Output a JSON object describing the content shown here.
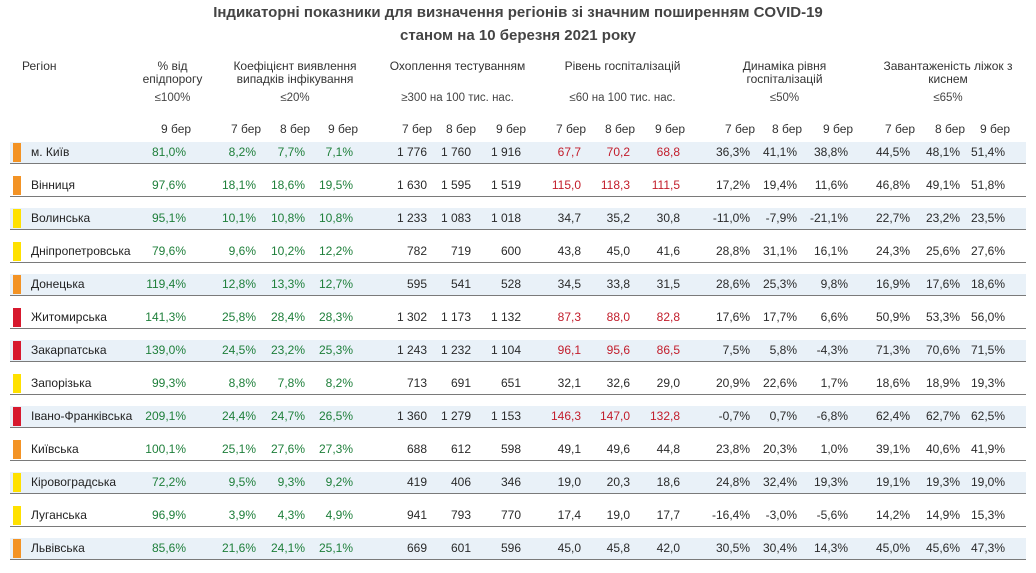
{
  "title_line1": "Індикаторні показники для визначення регіонів зі значним поширенням COVID-19",
  "title_line2": "станом на 10 березня 2021 року",
  "headers": {
    "region": "Регіон",
    "pct_epi": "% від епідпорогу",
    "pct_epi_threshold": "≤100%",
    "coef": "Коефіцієнт виявлення випадків інфікування",
    "coef_threshold": "≤20%",
    "tests": "Охоплення тестуванням",
    "tests_threshold": "≥300 на 100 тис. нас.",
    "hosp": "Рівень госпіталізацій",
    "hosp_threshold": "≤60 на 100 тис. нас.",
    "dyn": "Динаміка рівня госпіталізацій",
    "dyn_threshold": "≤50%",
    "oxy": "Завантаженість ліжок з киснем",
    "oxy_threshold": "≤65%"
  },
  "days": {
    "d7": "7 бер",
    "d8": "8 бер",
    "d9": "9 бер"
  },
  "colors": {
    "green": "#1e7f3a",
    "red": "#c21d2b",
    "orange": "#f39325",
    "yellow": "#ffe100",
    "darkred": "#d7192e",
    "band": "#e9f1f8"
  },
  "rows": [
    {
      "region": "м. Київ",
      "marker": "orange",
      "band": true,
      "epi": "81,0%",
      "coef": [
        "8,2%",
        "7,7%",
        "7,1%"
      ],
      "tests": [
        "1 776",
        "1 760",
        "1 916"
      ],
      "hosp": [
        "67,7",
        "70,2",
        "68,8"
      ],
      "hosp_red": true,
      "dyn": [
        "36,3%",
        "41,1%",
        "38,8%"
      ],
      "oxy": [
        "44,5%",
        "48,1%",
        "51,4%"
      ]
    },
    {
      "region": "Вінниця",
      "marker": "orange",
      "band": false,
      "epi": "97,6%",
      "coef": [
        "18,1%",
        "18,6%",
        "19,5%"
      ],
      "tests": [
        "1 630",
        "1 595",
        "1 519"
      ],
      "hosp": [
        "115,0",
        "118,3",
        "111,5"
      ],
      "hosp_red": true,
      "dyn": [
        "17,2%",
        "19,4%",
        "11,6%"
      ],
      "oxy": [
        "46,8%",
        "49,1%",
        "51,8%"
      ]
    },
    {
      "region": "Волинська",
      "marker": "yellow",
      "band": true,
      "epi": "95,1%",
      "coef": [
        "10,1%",
        "10,8%",
        "10,8%"
      ],
      "tests": [
        "1 233",
        "1 083",
        "1 018"
      ],
      "hosp": [
        "34,7",
        "35,2",
        "30,8"
      ],
      "hosp_red": false,
      "dyn": [
        "-11,0%",
        "-7,9%",
        "-21,1%"
      ],
      "oxy": [
        "22,7%",
        "23,2%",
        "23,5%"
      ]
    },
    {
      "region": "Дніпропетровська",
      "marker": "yellow",
      "band": false,
      "epi": "79,6%",
      "coef": [
        "9,6%",
        "10,2%",
        "12,2%"
      ],
      "tests": [
        "782",
        "719",
        "600"
      ],
      "hosp": [
        "43,8",
        "45,0",
        "41,6"
      ],
      "hosp_red": false,
      "dyn": [
        "28,8%",
        "31,1%",
        "16,1%"
      ],
      "oxy": [
        "24,3%",
        "25,6%",
        "27,6%"
      ]
    },
    {
      "region": "Донецька",
      "marker": "orange",
      "band": true,
      "epi": "119,4%",
      "coef": [
        "12,8%",
        "13,3%",
        "12,7%"
      ],
      "tests": [
        "595",
        "541",
        "528"
      ],
      "hosp": [
        "34,5",
        "33,8",
        "31,5"
      ],
      "hosp_red": false,
      "dyn": [
        "28,6%",
        "25,3%",
        "9,8%"
      ],
      "oxy": [
        "16,9%",
        "17,6%",
        "18,6%"
      ]
    },
    {
      "region": "Житомирська",
      "marker": "darkred",
      "band": false,
      "epi": "141,3%",
      "coef": [
        "25,8%",
        "28,4%",
        "28,3%"
      ],
      "tests": [
        "1 302",
        "1 173",
        "1 132"
      ],
      "hosp": [
        "87,3",
        "88,0",
        "82,8"
      ],
      "hosp_red": true,
      "dyn": [
        "17,6%",
        "17,7%",
        "6,6%"
      ],
      "oxy": [
        "50,9%",
        "53,3%",
        "56,0%"
      ]
    },
    {
      "region": "Закарпатська",
      "marker": "darkred",
      "band": true,
      "epi": "139,0%",
      "coef": [
        "24,5%",
        "23,2%",
        "25,3%"
      ],
      "tests": [
        "1 243",
        "1 232",
        "1 104"
      ],
      "hosp": [
        "96,1",
        "95,6",
        "86,5"
      ],
      "hosp_red": true,
      "dyn": [
        "7,5%",
        "5,8%",
        "-4,3%"
      ],
      "oxy": [
        "71,3%",
        "70,6%",
        "71,5%"
      ]
    },
    {
      "region": "Запорізька",
      "marker": "yellow",
      "band": false,
      "epi": "99,3%",
      "coef": [
        "8,8%",
        "7,8%",
        "8,2%"
      ],
      "tests": [
        "713",
        "691",
        "651"
      ],
      "hosp": [
        "32,1",
        "32,6",
        "29,0"
      ],
      "hosp_red": false,
      "dyn": [
        "20,9%",
        "22,6%",
        "1,7%"
      ],
      "oxy": [
        "18,6%",
        "18,9%",
        "19,3%"
      ]
    },
    {
      "region": "Івано-Франківська",
      "marker": "darkred",
      "band": true,
      "epi": "209,1%",
      "coef": [
        "24,4%",
        "24,7%",
        "26,5%"
      ],
      "tests": [
        "1 360",
        "1 279",
        "1 153"
      ],
      "hosp": [
        "146,3",
        "147,0",
        "132,8"
      ],
      "hosp_red": true,
      "dyn": [
        "-0,7%",
        "0,7%",
        "-6,8%"
      ],
      "oxy": [
        "62,4%",
        "62,7%",
        "62,5%"
      ]
    },
    {
      "region": "Київська",
      "marker": "orange",
      "band": false,
      "epi": "100,1%",
      "coef": [
        "25,1%",
        "27,6%",
        "27,3%"
      ],
      "tests": [
        "688",
        "612",
        "598"
      ],
      "hosp": [
        "49,1",
        "49,6",
        "44,8"
      ],
      "hosp_red": false,
      "dyn": [
        "23,8%",
        "20,3%",
        "1,0%"
      ],
      "oxy": [
        "39,1%",
        "40,6%",
        "41,9%"
      ]
    },
    {
      "region": "Кіровоградська",
      "marker": "yellow",
      "band": true,
      "epi": "72,2%",
      "coef": [
        "9,5%",
        "9,3%",
        "9,2%"
      ],
      "tests": [
        "419",
        "406",
        "346"
      ],
      "hosp": [
        "19,0",
        "20,3",
        "18,6"
      ],
      "hosp_red": false,
      "dyn": [
        "24,8%",
        "32,4%",
        "19,3%"
      ],
      "oxy": [
        "19,1%",
        "19,3%",
        "19,0%"
      ]
    },
    {
      "region": "Луганська",
      "marker": "yellow",
      "band": false,
      "epi": "96,9%",
      "coef": [
        "3,9%",
        "4,3%",
        "4,9%"
      ],
      "tests": [
        "941",
        "793",
        "770"
      ],
      "hosp": [
        "17,4",
        "19,0",
        "17,7"
      ],
      "hosp_red": false,
      "dyn": [
        "-16,4%",
        "-3,0%",
        "-5,6%"
      ],
      "oxy": [
        "14,2%",
        "14,9%",
        "15,3%"
      ]
    },
    {
      "region": "Львівська",
      "marker": "orange",
      "band": true,
      "epi": "85,6%",
      "coef": [
        "21,6%",
        "24,1%",
        "25,1%"
      ],
      "tests": [
        "669",
        "601",
        "596"
      ],
      "hosp": [
        "45,0",
        "45,8",
        "42,0"
      ],
      "hosp_red": false,
      "dyn": [
        "30,5%",
        "30,4%",
        "14,3%"
      ],
      "oxy": [
        "45,0%",
        "45,6%",
        "47,3%"
      ]
    }
  ]
}
